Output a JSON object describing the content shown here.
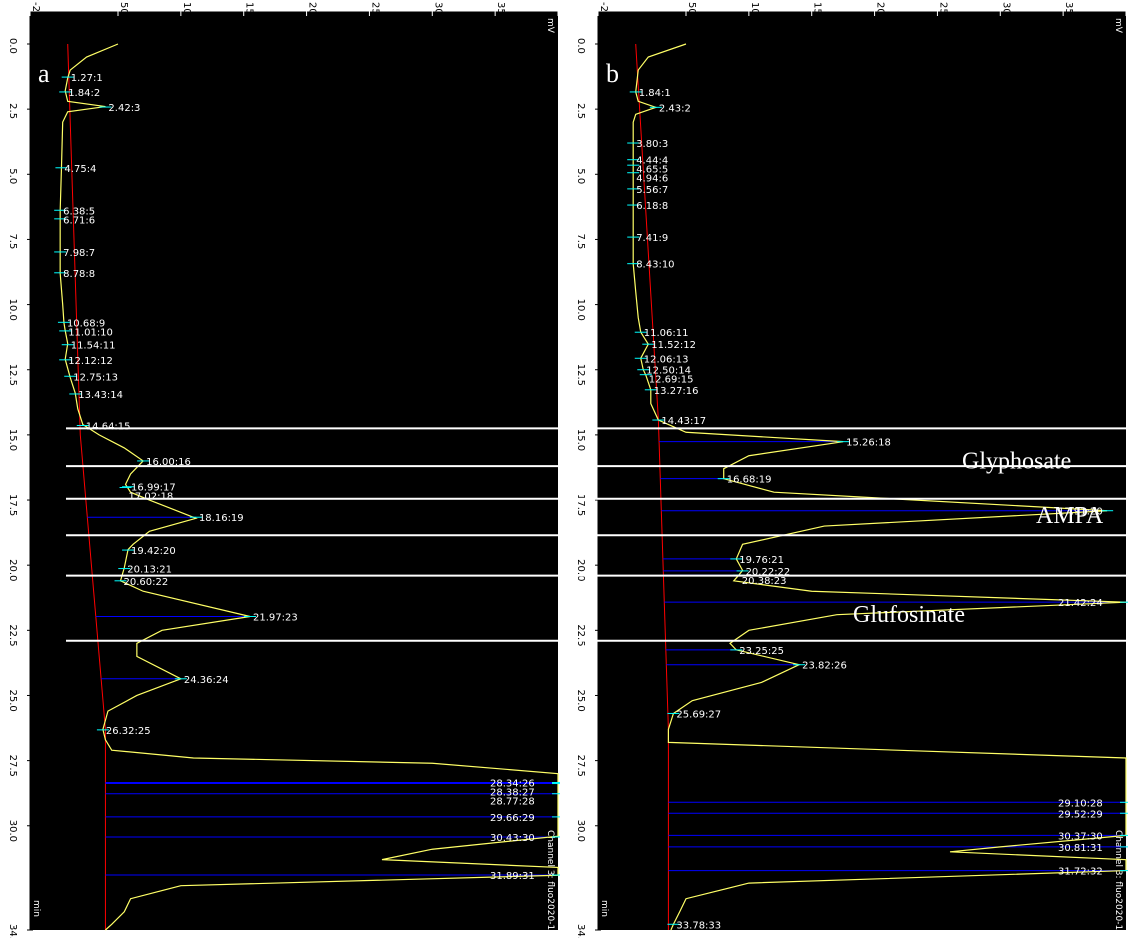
{
  "chart_data": [
    {
      "type": "line",
      "panel_label": "a",
      "units": {
        "y": "mV",
        "x": "min"
      },
      "y_ticks": [
        -20,
        50,
        100,
        150,
        200,
        250,
        300,
        350,
        400
      ],
      "x_ticks": [
        "0.0",
        "2.5",
        "5.0",
        "7.5",
        "10.0",
        "12.5",
        "15.0",
        "17.5",
        "20.0",
        "22.5",
        "25.0",
        "27.5",
        "30.0",
        "34.0"
      ],
      "ylim": [
        -20,
        400
      ],
      "xlim": [
        0,
        34
      ],
      "channel_label": "Channel 3: fluo2020-1",
      "trace": [
        [
          0,
          50
        ],
        [
          0.5,
          25
        ],
        [
          1.0,
          12
        ],
        [
          1.3,
          10
        ],
        [
          1.8,
          8
        ],
        [
          2.2,
          10
        ],
        [
          2.4,
          40
        ],
        [
          2.6,
          10
        ],
        [
          3.0,
          6
        ],
        [
          4.8,
          5
        ],
        [
          6.4,
          4
        ],
        [
          6.7,
          4
        ],
        [
          8.0,
          4
        ],
        [
          8.8,
          4
        ],
        [
          10.0,
          6
        ],
        [
          10.7,
          7
        ],
        [
          11.0,
          8
        ],
        [
          11.5,
          10
        ],
        [
          12.1,
          8
        ],
        [
          12.8,
          12
        ],
        [
          13.4,
          16
        ],
        [
          14.0,
          18
        ],
        [
          14.6,
          22
        ],
        [
          15.0,
          35
        ],
        [
          15.5,
          55
        ],
        [
          16.0,
          70
        ],
        [
          16.5,
          60
        ],
        [
          16.9,
          56
        ],
        [
          17.2,
          60
        ],
        [
          17.5,
          75
        ],
        [
          18.2,
          112
        ],
        [
          18.7,
          75
        ],
        [
          19.2,
          62
        ],
        [
          19.4,
          58
        ],
        [
          20.1,
          55
        ],
        [
          20.6,
          52
        ],
        [
          21.0,
          70
        ],
        [
          21.97,
          155
        ],
        [
          22.5,
          85
        ],
        [
          23.0,
          65
        ],
        [
          23.5,
          65
        ],
        [
          24.36,
          100
        ],
        [
          25.0,
          65
        ],
        [
          25.6,
          42
        ],
        [
          26.3,
          38
        ],
        [
          26.7,
          40
        ],
        [
          27.1,
          45
        ],
        [
          27.4,
          110
        ],
        [
          27.6,
          300
        ],
        [
          28.0,
          420
        ],
        [
          28.8,
          420
        ],
        [
          29.7,
          420
        ],
        [
          30.4,
          420
        ],
        [
          30.9,
          300
        ],
        [
          31.3,
          260
        ],
        [
          31.6,
          420
        ],
        [
          31.9,
          420
        ],
        [
          32.3,
          100
        ],
        [
          32.8,
          60
        ],
        [
          33.3,
          55
        ],
        [
          33.78,
          45
        ],
        [
          34.0,
          40
        ]
      ],
      "baseline": [
        [
          0,
          10
        ],
        [
          15.0,
          20
        ],
        [
          26.3,
          40
        ],
        [
          34.0,
          40
        ]
      ],
      "peaks": [
        {
          "t": 1.27,
          "y": 10,
          "label": "1.27:1"
        },
        {
          "t": 1.84,
          "y": 8,
          "label": "1.84:2"
        },
        {
          "t": 2.42,
          "y": 40,
          "label": "2.42:3"
        },
        {
          "t": 4.75,
          "y": 5,
          "label": "4.75:4"
        },
        {
          "t": 6.38,
          "y": 4,
          "label": "6.38:5"
        },
        {
          "t": 6.71,
          "y": 4,
          "label": "6.71:6"
        },
        {
          "t": 7.98,
          "y": 4,
          "label": "7.98:7"
        },
        {
          "t": 8.78,
          "y": 4,
          "label": "8.78:8"
        },
        {
          "t": 10.68,
          "y": 7,
          "label": "10.68:9"
        },
        {
          "t": 11.01,
          "y": 8,
          "label": "11.01:10"
        },
        {
          "t": 11.54,
          "y": 10,
          "label": "11.54:11"
        },
        {
          "t": 12.12,
          "y": 8,
          "label": "12.12:12"
        },
        {
          "t": 12.75,
          "y": 12,
          "label": "12.75:13"
        },
        {
          "t": 13.43,
          "y": 16,
          "label": "13.43:14"
        },
        {
          "t": 14.64,
          "y": 22,
          "label": "14.64:15"
        },
        {
          "t": 16.0,
          "y": 70,
          "label": "16.00:16"
        },
        {
          "t": 16.99,
          "y": 58,
          "label": "16.99:17"
        },
        {
          "t": 17.02,
          "y": 56,
          "label": "17.02:18"
        },
        {
          "t": 18.16,
          "y": 112,
          "label": "18.16:19"
        },
        {
          "t": 19.42,
          "y": 58,
          "label": "19.42:20"
        },
        {
          "t": 20.13,
          "y": 55,
          "label": "20.13:21"
        },
        {
          "t": 20.6,
          "y": 52,
          "label": "20.60:22"
        },
        {
          "t": 21.97,
          "y": 155,
          "label": "21.97:23"
        },
        {
          "t": 24.36,
          "y": 100,
          "label": "24.36:24"
        },
        {
          "t": 26.32,
          "y": 38,
          "label": "26.32:25"
        },
        {
          "t": 28.34,
          "y": 400,
          "label": "28.34:26"
        },
        {
          "t": 28.38,
          "y": 400,
          "label": "28.38:27"
        },
        {
          "t": 28.77,
          "y": 400,
          "label": "28.77:28"
        },
        {
          "t": 29.66,
          "y": 400,
          "label": "29.66:29"
        },
        {
          "t": 30.43,
          "y": 400,
          "label": "30.43:30"
        },
        {
          "t": 31.89,
          "y": 400,
          "label": "31.89:31"
        }
      ],
      "annotations": []
    },
    {
      "type": "line",
      "panel_label": "b",
      "units": {
        "y": "mV",
        "x": "min"
      },
      "y_ticks": [
        -20,
        50,
        100,
        150,
        200,
        250,
        300,
        350,
        400
      ],
      "x_ticks": [
        "0.0",
        "2.5",
        "5.0",
        "7.5",
        "10.0",
        "12.5",
        "15.0",
        "17.5",
        "20.0",
        "22.5",
        "25.0",
        "27.5",
        "30.0",
        "34.0"
      ],
      "ylim": [
        -20,
        400
      ],
      "xlim": [
        0,
        34
      ],
      "channel_label": "Channel 3: fluo2020-1",
      "trace": [
        [
          0,
          50
        ],
        [
          0.5,
          20
        ],
        [
          1.0,
          12
        ],
        [
          1.84,
          10
        ],
        [
          2.2,
          12
        ],
        [
          2.43,
          26
        ],
        [
          2.7,
          10
        ],
        [
          3.0,
          8
        ],
        [
          3.8,
          8
        ],
        [
          4.4,
          8
        ],
        [
          4.6,
          8
        ],
        [
          4.8,
          8
        ],
        [
          4.94,
          8
        ],
        [
          5.56,
          8
        ],
        [
          6.18,
          8
        ],
        [
          7.41,
          8
        ],
        [
          8.43,
          8
        ],
        [
          9.5,
          10
        ],
        [
          10.5,
          12
        ],
        [
          11.06,
          14
        ],
        [
          11.52,
          20
        ],
        [
          12.06,
          14
        ],
        [
          12.5,
          16
        ],
        [
          12.7,
          18
        ],
        [
          13.27,
          22
        ],
        [
          13.8,
          22
        ],
        [
          14.43,
          28
        ],
        [
          14.9,
          50
        ],
        [
          15.26,
          175
        ],
        [
          15.8,
          100
        ],
        [
          16.3,
          80
        ],
        [
          16.68,
          80
        ],
        [
          17.2,
          120
        ],
        [
          17.91,
          385
        ],
        [
          18.5,
          160
        ],
        [
          19.2,
          95
        ],
        [
          19.76,
          90
        ],
        [
          20.2,
          95
        ],
        [
          20.38,
          92
        ],
        [
          20.6,
          88
        ],
        [
          21.0,
          150
        ],
        [
          21.42,
          470
        ],
        [
          21.9,
          170
        ],
        [
          22.5,
          100
        ],
        [
          23.0,
          85
        ],
        [
          23.25,
          90
        ],
        [
          23.82,
          140
        ],
        [
          24.5,
          110
        ],
        [
          25.2,
          55
        ],
        [
          25.69,
          40
        ],
        [
          26.3,
          36
        ],
        [
          26.8,
          36
        ],
        [
          27.4,
          420
        ],
        [
          28.0,
          420
        ],
        [
          29.1,
          420
        ],
        [
          29.52,
          420
        ],
        [
          30.37,
          420
        ],
        [
          30.81,
          300
        ],
        [
          31.0,
          260
        ],
        [
          31.3,
          420
        ],
        [
          31.72,
          420
        ],
        [
          32.2,
          100
        ],
        [
          32.8,
          50
        ],
        [
          33.3,
          45
        ],
        [
          33.78,
          40
        ],
        [
          34.0,
          38
        ]
      ],
      "baseline": [
        [
          0,
          10
        ],
        [
          14.4,
          28
        ],
        [
          26.3,
          36
        ],
        [
          34.0,
          36
        ]
      ],
      "peaks": [
        {
          "t": 1.84,
          "y": 10,
          "label": "1.84:1"
        },
        {
          "t": 2.43,
          "y": 26,
          "label": "2.43:2"
        },
        {
          "t": 3.8,
          "y": 8,
          "label": "3.80:3"
        },
        {
          "t": 4.44,
          "y": 8,
          "label": "4.44:4"
        },
        {
          "t": 4.65,
          "y": 8,
          "label": "4.65:5"
        },
        {
          "t": 4.94,
          "y": 8,
          "label": "4.94:6"
        },
        {
          "t": 5.56,
          "y": 8,
          "label": "5.56:7"
        },
        {
          "t": 6.18,
          "y": 8,
          "label": "6.18:8"
        },
        {
          "t": 7.41,
          "y": 8,
          "label": "7.41:9"
        },
        {
          "t": 8.43,
          "y": 8,
          "label": "8.43:10"
        },
        {
          "t": 11.06,
          "y": 14,
          "label": "11.06:11"
        },
        {
          "t": 11.52,
          "y": 20,
          "label": "11.52:12"
        },
        {
          "t": 12.06,
          "y": 14,
          "label": "12.06:13"
        },
        {
          "t": 12.5,
          "y": 16,
          "label": "12.50:14"
        },
        {
          "t": 12.69,
          "y": 18,
          "label": "12.69:15"
        },
        {
          "t": 13.27,
          "y": 22,
          "label": "13.27:16"
        },
        {
          "t": 14.43,
          "y": 28,
          "label": "14.43:17"
        },
        {
          "t": 15.26,
          "y": 175,
          "label": "15.26:18"
        },
        {
          "t": 16.68,
          "y": 80,
          "label": "16.68:19"
        },
        {
          "t": 17.91,
          "y": 385,
          "label": "17.91:20"
        },
        {
          "t": 19.76,
          "y": 90,
          "label": "19.76:21"
        },
        {
          "t": 20.22,
          "y": 95,
          "label": "20.22:22"
        },
        {
          "t": 20.38,
          "y": 92,
          "label": "20.38:23"
        },
        {
          "t": 21.42,
          "y": 470,
          "label": "21.42:24"
        },
        {
          "t": 23.25,
          "y": 90,
          "label": "23.25:25"
        },
        {
          "t": 23.82,
          "y": 140,
          "label": "23.82:26"
        },
        {
          "t": 25.69,
          "y": 40,
          "label": "25.69:27"
        },
        {
          "t": 29.1,
          "y": 400,
          "label": "29.10:28"
        },
        {
          "t": 29.52,
          "y": 400,
          "label": "29.52:29"
        },
        {
          "t": 30.37,
          "y": 400,
          "label": "30.37:30"
        },
        {
          "t": 30.81,
          "y": 400,
          "label": "30.81:31"
        },
        {
          "t": 31.72,
          "y": 400,
          "label": "31.72:32"
        },
        {
          "t": 33.78,
          "y": 40,
          "label": "33.78:33"
        }
      ],
      "annotations": [
        {
          "text": "Glyphosate",
          "t": 15.9
        },
        {
          "text": "AMPA",
          "t": 18.0
        },
        {
          "text": "Glufosinate",
          "t": 21.8
        }
      ]
    }
  ],
  "overlay_lines_t": [
    14.75,
    16.2,
    17.45,
    18.85,
    20.4,
    22.9
  ],
  "colors": {
    "plot_bg": "#000000",
    "trace": "#ffff66",
    "baseline": "#ff0000",
    "fill_line": "#0000ff",
    "peak_tick": "#00ffff",
    "overlay": "#ffffff",
    "label": "#ffffff"
  }
}
